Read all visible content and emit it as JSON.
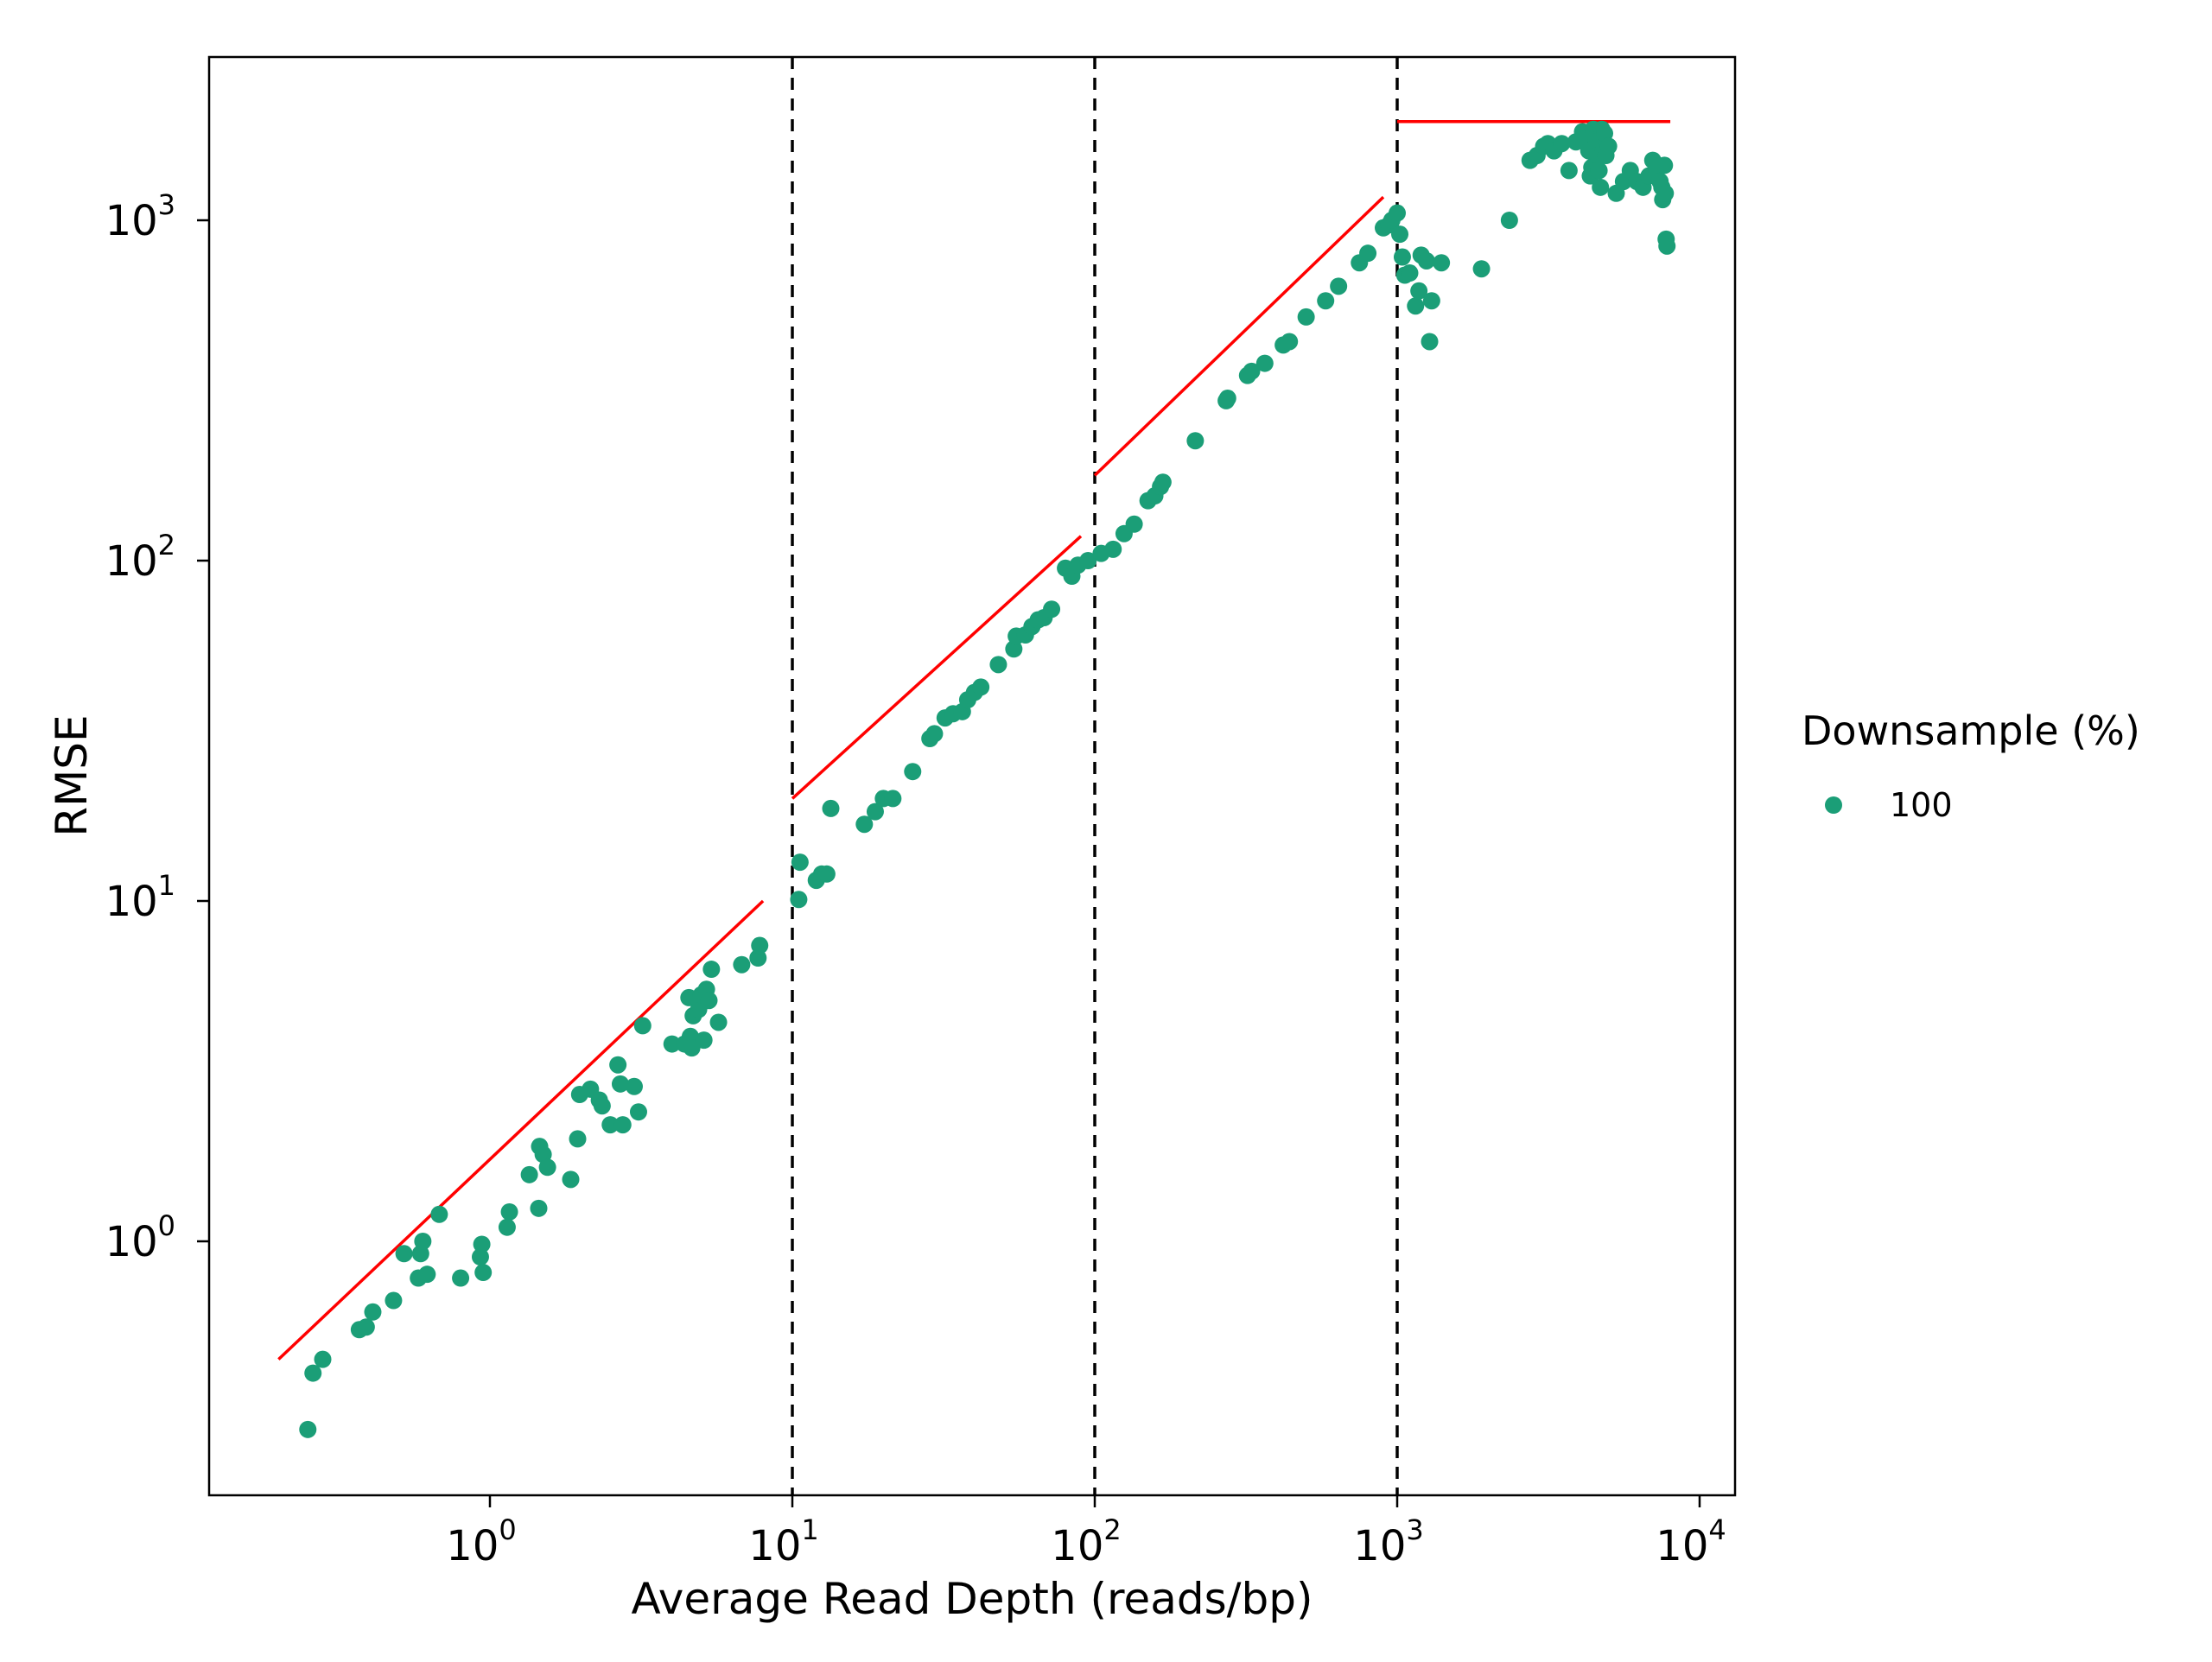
{
  "chart_data": {
    "type": "scatter",
    "title": "",
    "xlabel": "Average Read Depth (reads/bp)",
    "ylabel": "RMSE",
    "x_scale": "log10",
    "y_scale": "log10",
    "xlim": [
      0.1,
      13000
    ],
    "ylim": [
      0.2,
      3000
    ],
    "x_ticks": [
      {
        "value": 1,
        "base": "10",
        "exp": "0"
      },
      {
        "value": 10,
        "base": "10",
        "exp": "1"
      },
      {
        "value": 100,
        "base": "10",
        "exp": "2"
      },
      {
        "value": 1000,
        "base": "10",
        "exp": "3"
      },
      {
        "value": 10000,
        "base": "10",
        "exp": "4"
      }
    ],
    "y_ticks": [
      {
        "value": 1,
        "base": "10",
        "exp": "0"
      },
      {
        "value": 10,
        "base": "10",
        "exp": "1"
      },
      {
        "value": 100,
        "base": "10",
        "exp": "2"
      },
      {
        "value": 1000,
        "base": "10",
        "exp": "3"
      }
    ],
    "grid": false,
    "legend": {
      "title": "Downsample (%)",
      "position": "right",
      "entries": [
        {
          "label": "100",
          "color": "#1b9e77"
        }
      ]
    },
    "colors": {
      "points": "#1b9e77",
      "fit_lines": "#ff0000",
      "vlines": "#000000"
    },
    "vlines": [
      10,
      100,
      1000
    ],
    "fit_lines": [
      {
        "x": [
          0.2,
          8.0
        ],
        "y": [
          0.45,
          10.0
        ]
      },
      {
        "x": [
          10.0,
          90.0
        ],
        "y": [
          20.0,
          118.0
        ]
      },
      {
        "x": [
          100.0,
          900.0
        ],
        "y": [
          178.0,
          1170.0
        ]
      },
      {
        "x": [
          1000.0,
          8000.0
        ],
        "y": [
          1950.0,
          1950.0
        ]
      }
    ],
    "series": [
      {
        "name": "100",
        "points": [
          [
            0.25,
            0.28
          ],
          [
            0.26,
            0.41
          ],
          [
            0.28,
            0.45
          ],
          [
            0.37,
            0.55
          ],
          [
            0.39,
            0.56
          ],
          [
            0.41,
            0.62
          ],
          [
            0.48,
            0.67
          ],
          [
            0.52,
            0.92
          ],
          [
            0.58,
            0.78
          ],
          [
            0.59,
            0.92
          ],
          [
            0.6,
            1.0
          ],
          [
            0.62,
            0.8
          ],
          [
            0.68,
            1.2
          ],
          [
            0.8,
            0.78
          ],
          [
            0.93,
            0.9
          ],
          [
            0.94,
            0.98
          ],
          [
            0.95,
            0.81
          ],
          [
            1.14,
            1.1
          ],
          [
            1.16,
            1.22
          ],
          [
            1.35,
            1.57
          ],
          [
            1.45,
            1.25
          ],
          [
            1.46,
            1.9
          ],
          [
            1.5,
            1.8
          ],
          [
            1.55,
            1.65
          ],
          [
            1.85,
            1.52
          ],
          [
            1.95,
            2.0
          ],
          [
            1.98,
            2.7
          ],
          [
            2.15,
            2.8
          ],
          [
            2.3,
            2.6
          ],
          [
            2.35,
            2.5
          ],
          [
            2.5,
            2.2
          ],
          [
            2.65,
            3.3
          ],
          [
            2.7,
            2.9
          ],
          [
            2.75,
            2.2
          ],
          [
            3.0,
            2.85
          ],
          [
            3.1,
            2.4
          ],
          [
            3.2,
            4.3
          ],
          [
            4.0,
            3.8
          ],
          [
            4.4,
            3.8
          ],
          [
            4.55,
            5.2
          ],
          [
            4.6,
            4.0
          ],
          [
            4.65,
            3.7
          ],
          [
            4.7,
            4.6
          ],
          [
            4.9,
            4.8
          ],
          [
            5.0,
            5.3
          ],
          [
            5.1,
            3.9
          ],
          [
            5.2,
            5.5
          ],
          [
            5.3,
            5.1
          ],
          [
            5.4,
            6.3
          ],
          [
            5.7,
            4.4
          ],
          [
            6.8,
            6.5
          ],
          [
            7.7,
            6.8
          ],
          [
            7.8,
            7.4
          ],
          [
            10.5,
            10.1
          ],
          [
            10.6,
            13.0
          ],
          [
            12.0,
            11.5
          ],
          [
            12.5,
            12.0
          ],
          [
            13.0,
            12.0
          ],
          [
            13.4,
            18.7
          ],
          [
            17.3,
            16.8
          ],
          [
            18.8,
            18.3
          ],
          [
            20.0,
            20.0
          ],
          [
            21.5,
            20.0
          ],
          [
            25.0,
            24.0
          ],
          [
            28.5,
            30.0
          ],
          [
            29.5,
            31.0
          ],
          [
            32.0,
            34.5
          ],
          [
            34.0,
            35.5
          ],
          [
            36.5,
            36.0
          ],
          [
            38.0,
            39.0
          ],
          [
            40.0,
            41.0
          ],
          [
            42.0,
            42.5
          ],
          [
            48.0,
            49.5
          ],
          [
            54.0,
            55.0
          ],
          [
            55.0,
            60.0
          ],
          [
            59.0,
            60.5
          ],
          [
            62.0,
            64.0
          ],
          [
            65.0,
            67.0
          ],
          [
            68.0,
            68.0
          ],
          [
            72.0,
            72.0
          ],
          [
            80.0,
            95.0
          ],
          [
            84.0,
            90.0
          ],
          [
            88.0,
            97.0
          ],
          [
            95.0,
            100.0
          ],
          [
            105.0,
            105.0
          ],
          [
            115.0,
            108.0
          ],
          [
            125.0,
            120.0
          ],
          [
            135.0,
            128.0
          ],
          [
            150.0,
            150.0
          ],
          [
            158.0,
            155.0
          ],
          [
            165.0,
            165.0
          ],
          [
            168.0,
            170.0
          ],
          [
            215.0,
            225.0
          ],
          [
            272.0,
            295.0
          ],
          [
            275.0,
            300.0
          ],
          [
            320.0,
            350.0
          ],
          [
            330.0,
            360.0
          ],
          [
            365.0,
            380.0
          ],
          [
            420.0,
            430.0
          ],
          [
            440.0,
            440.0
          ],
          [
            500.0,
            520.0
          ],
          [
            580.0,
            580.0
          ],
          [
            640.0,
            640.0
          ],
          [
            750.0,
            750.0
          ],
          [
            800.0,
            800.0
          ],
          [
            900.0,
            950.0
          ],
          [
            940.0,
            970.0
          ],
          [
            960.0,
            1000.0
          ],
          [
            1000.0,
            1050.0
          ],
          [
            1020.0,
            910.0
          ],
          [
            1040.0,
            780.0
          ],
          [
            1060.0,
            690.0
          ],
          [
            1100.0,
            700.0
          ],
          [
            1150.0,
            560.0
          ],
          [
            1180.0,
            620.0
          ],
          [
            1200.0,
            790.0
          ],
          [
            1250.0,
            760.0
          ],
          [
            1280.0,
            440.0
          ],
          [
            1300.0,
            580.0
          ],
          [
            1400.0,
            750.0
          ],
          [
            1900.0,
            720.0
          ],
          [
            2350.0,
            1000.0
          ],
          [
            2750.0,
            1500.0
          ],
          [
            2900.0,
            1550.0
          ],
          [
            3050.0,
            1650.0
          ],
          [
            3150.0,
            1680.0
          ],
          [
            3300.0,
            1600.0
          ],
          [
            3500.0,
            1680.0
          ],
          [
            3700.0,
            1400.0
          ],
          [
            3900.0,
            1700.0
          ],
          [
            4100.0,
            1820.0
          ],
          [
            4250.0,
            1750.0
          ],
          [
            4300.0,
            1600.0
          ],
          [
            4350.0,
            1350.0
          ],
          [
            4400.0,
            1430.0
          ],
          [
            4450.0,
            1850.0
          ],
          [
            4500.0,
            1800.0
          ],
          [
            4550.0,
            1700.0
          ],
          [
            4600.0,
            1550.0
          ],
          [
            4650.0,
            1400.0
          ],
          [
            4700.0,
            1250.0
          ],
          [
            4750.0,
            1850.0
          ],
          [
            4800.0,
            1600.0
          ],
          [
            4850.0,
            1800.0
          ],
          [
            4900.0,
            1550.0
          ],
          [
            5000.0,
            1650.0
          ],
          [
            5300.0,
            1200.0
          ],
          [
            5600.0,
            1300.0
          ],
          [
            5900.0,
            1400.0
          ],
          [
            6200.0,
            1300.0
          ],
          [
            6500.0,
            1250.0
          ],
          [
            6800.0,
            1350.0
          ],
          [
            7000.0,
            1500.0
          ],
          [
            7200.0,
            1400.0
          ],
          [
            7400.0,
            1300.0
          ],
          [
            7500.0,
            1250.0
          ],
          [
            7550.0,
            1150.0
          ],
          [
            7650.0,
            1450.0
          ],
          [
            7700.0,
            1200.0
          ],
          [
            7750.0,
            880.0
          ],
          [
            7800.0,
            840.0
          ]
        ]
      }
    ]
  }
}
